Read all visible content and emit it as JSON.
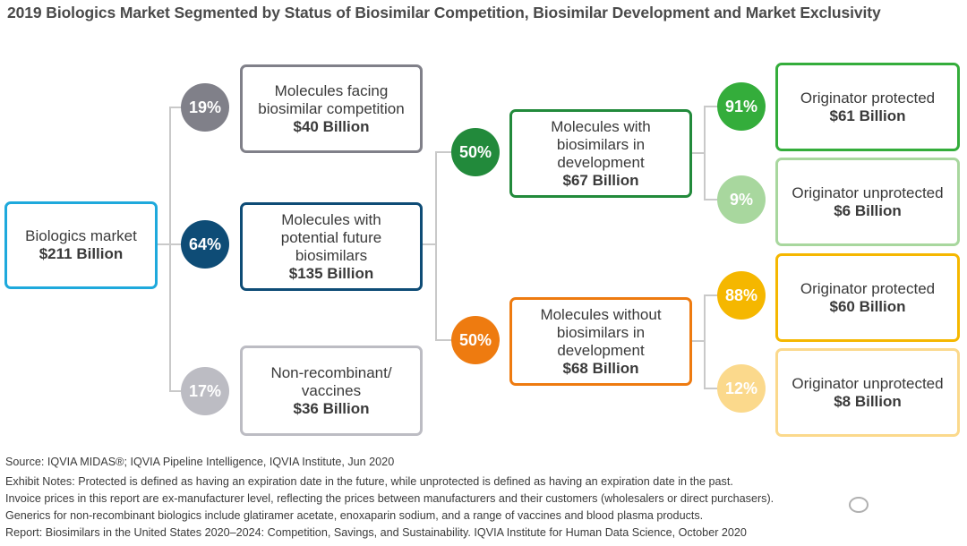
{
  "title": "2019 Biologics Market Segmented by Status of Biosimilar Competition, Biosimilar Development and Market Exclusivity",
  "colors": {
    "root": "#1ea9dc",
    "facing": "#808089",
    "potential": "#0e4c76",
    "nonrecomb": "#bcbcc3",
    "with_dev": "#228a3b",
    "with_prot": "#34ad3b",
    "with_unprot": "#a8d79e",
    "without_dev": "#ee7b10",
    "without_prot": "#f5b700",
    "without_unprot": "#fbd98c",
    "line": "#c9c9c9"
  },
  "nodes": {
    "root": {
      "label": "Biologics market",
      "value": "$211 Billion"
    },
    "facing": {
      "pct": "19%",
      "label": "Molecules facing\nbiosimilar competition",
      "value": "$40 Billion"
    },
    "potential": {
      "pct": "64%",
      "label": "Molecules with\npotential future\nbiosimilars",
      "value": "$135 Billion"
    },
    "nonrecomb": {
      "pct": "17%",
      "label": "Non-recombinant/\nvaccines",
      "value": "$36 Billion"
    },
    "with_dev": {
      "pct": "50%",
      "label": "Molecules with\nbiosimilars in\ndevelopment",
      "value": "$67 Billion"
    },
    "without_dev": {
      "pct": "50%",
      "label": "Molecules without\nbiosimilars in\ndevelopment",
      "value": "$68 Billion"
    },
    "with_prot": {
      "pct": "91%",
      "label": "Originator protected",
      "value": "$61 Billion"
    },
    "with_unprot": {
      "pct": "9%",
      "label": "Originator unprotected",
      "value": "$6 Billion"
    },
    "without_prot": {
      "pct": "88%",
      "label": "Originator protected",
      "value": "$60 Billion"
    },
    "without_unprot": {
      "pct": "12%",
      "label": "Originator unprotected",
      "value": "$8 Billion"
    }
  },
  "notes": {
    "source": "Source: IQVIA MIDAS®; IQVIA Pipeline Intelligence, IQVIA Institute, Jun 2020",
    "exhibit": "Exhibit Notes: Protected is defined as having an expiration date in the future, while unprotected is defined as having an expiration date in the past.",
    "invoice": "Invoice prices in this report are ex-manufacturer level, reflecting the prices between manufacturers and their customers (wholesalers or direct purchasers).",
    "generics": "Generics for non-recombinant biologics include glatiramer acetate, enoxaparin sodium, and a range of vaccines and blood plasma products.",
    "report": "Report: Biosimilars in the United States 2020–2024: Competition, Savings, and Sustainability. IQVIA Institute for Human Data Science, October 2020"
  }
}
